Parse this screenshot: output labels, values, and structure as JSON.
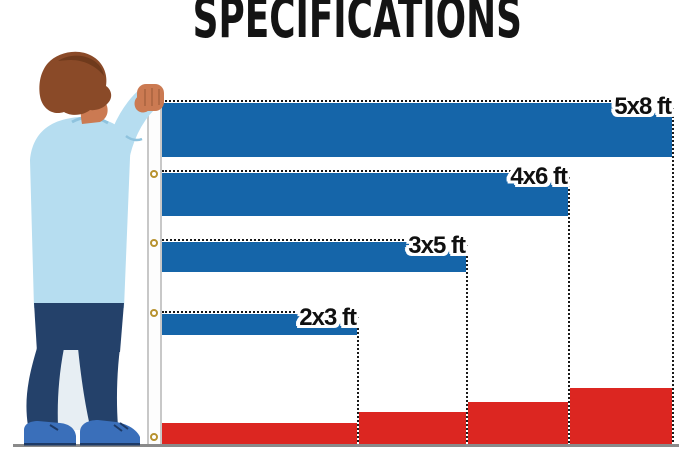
{
  "title": "SPECIFICATIONS",
  "flags": [
    {
      "id": "5x8",
      "label": "5x8 ft",
      "width_ft": 8,
      "height_ft": 5
    },
    {
      "id": "4x6",
      "label": "4x6 ft",
      "width_ft": 6,
      "height_ft": 4
    },
    {
      "id": "3x5",
      "label": "3x5 ft",
      "width_ft": 5,
      "height_ft": 3
    },
    {
      "id": "2x3",
      "label": "2x3 ft",
      "width_ft": 3,
      "height_ft": 2
    }
  ],
  "icons": {
    "grommet": "grommet-icon",
    "person": "person-holding-flag-illustration"
  },
  "colors": {
    "title": "#141414",
    "flag_blue": "#1565a9",
    "flag_red": "#dc2621",
    "border_dot": "#1a1a1a",
    "label_text": "#101010",
    "label_outline": "#ffffff",
    "pole_edge": "#c8c8c8",
    "grommet_gold": "#b7922f",
    "ground": "#8a8a8a",
    "hair": "#8a4a28",
    "hair_dark": "#6f3a1c",
    "skin": "#cb7a52",
    "skin_shadow": "#a05f3c",
    "shirt": "#b6ddf0",
    "shirt_shade": "#8fc3de",
    "pants": "#24416a",
    "pants_gap": "#e7eef3",
    "shoes": "#3a6fba",
    "shoe_dark": "#1d3a66"
  }
}
